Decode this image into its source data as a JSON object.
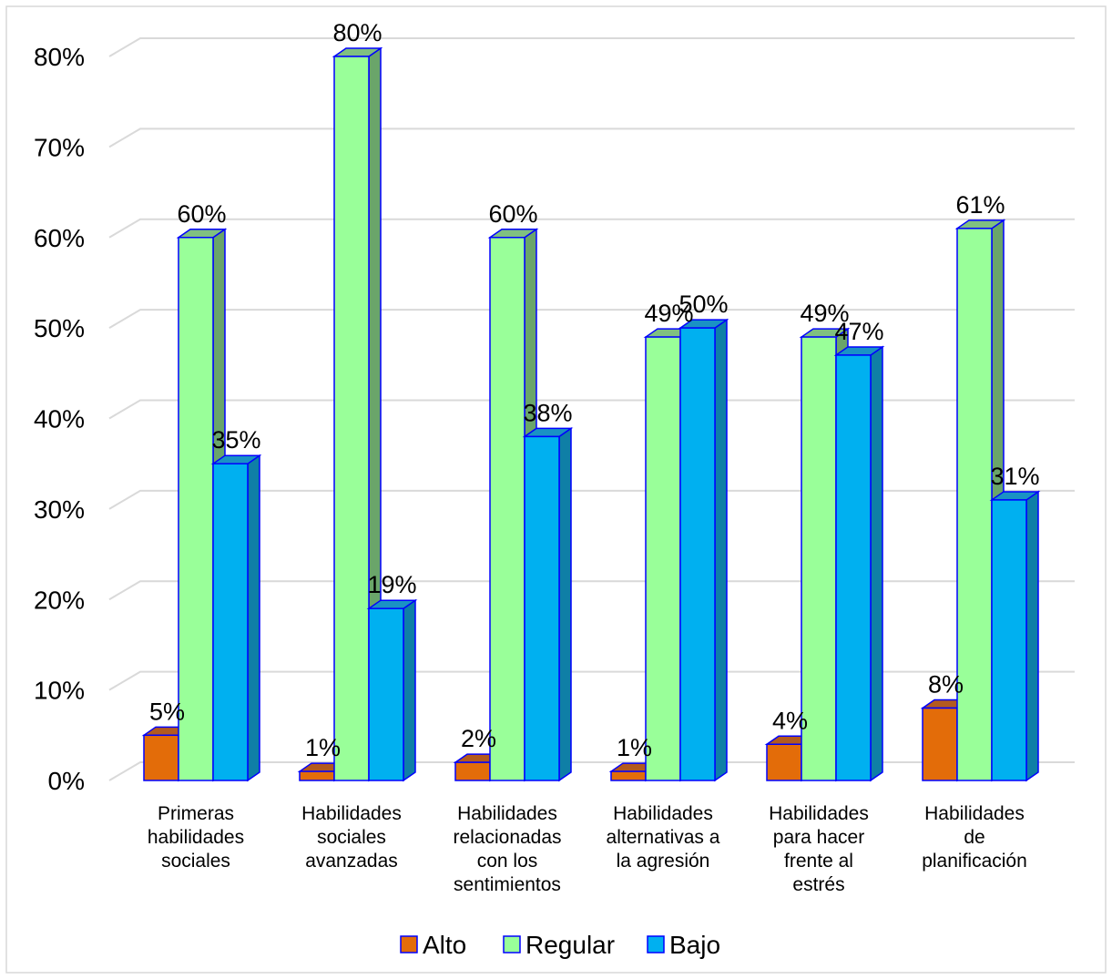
{
  "chart_data": {
    "type": "bar",
    "categories": [
      "Primeras habilidades sociales",
      "Habilidades sociales avanzadas",
      "Habilidades relacionadas con los sentimientos",
      "Habilidades alternativas a la agresión",
      "Habilidades para hacer frente al estrés",
      "Habilidades de planificación"
    ],
    "category_lines": [
      [
        "Primeras",
        "habilidades",
        "sociales"
      ],
      [
        "Habilidades",
        "sociales",
        "avanzadas"
      ],
      [
        "Habilidades",
        "relacionadas",
        "con los",
        "sentimientos"
      ],
      [
        "Habilidades",
        "alternativas a",
        "la agresión"
      ],
      [
        "Habilidades",
        "para hacer",
        "frente al",
        "estrés"
      ],
      [
        "Habilidades",
        "de",
        "planificación"
      ]
    ],
    "series": [
      {
        "name": "Alto",
        "values": [
          5,
          1,
          2,
          1,
          4,
          8
        ],
        "labels": [
          "5%",
          "1%",
          "2%",
          "1%",
          "4%",
          "8%"
        ],
        "color": "#e36c09",
        "side_color": "#b85400",
        "top_color": "#b35a1f"
      },
      {
        "name": "Regular",
        "values": [
          60,
          80,
          60,
          49,
          49,
          61
        ],
        "labels": [
          "60%",
          "80%",
          "60%",
          "49%",
          "49%",
          "61%"
        ],
        "color": "#99ff99",
        "side_color": "#6aa56a",
        "top_color": "#80c080"
      },
      {
        "name": "Bajo",
        "values": [
          35,
          19,
          38,
          50,
          47,
          31
        ],
        "labels": [
          "35%",
          "19%",
          "38%",
          "50%",
          "47%",
          "31%"
        ],
        "color": "#00b0f0",
        "side_color": "#0f7fa6",
        "top_color": "#1a92c4"
      }
    ],
    "y_ticks": [
      0,
      10,
      20,
      30,
      40,
      50,
      60,
      70,
      80
    ],
    "y_tick_labels": [
      "0%",
      "10%",
      "20%",
      "30%",
      "40%",
      "50%",
      "60%",
      "70%",
      "80%"
    ],
    "ylim": [
      0,
      80
    ],
    "grid": true,
    "legend_position": "bottom",
    "bar_outline_color": "#0000ff",
    "style": "3d-clustered-column"
  }
}
